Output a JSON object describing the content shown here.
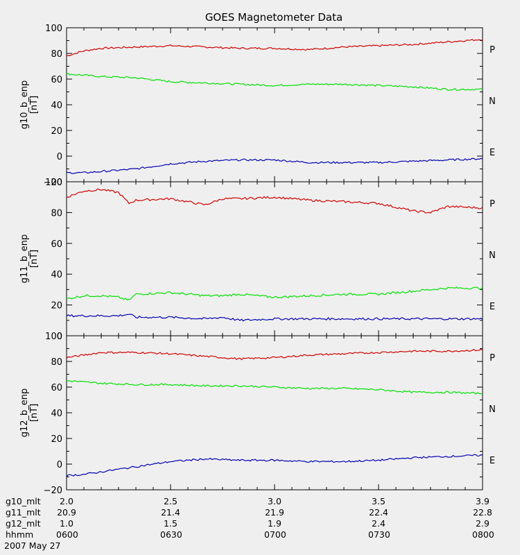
{
  "colors": {
    "P": "#d00000",
    "N": "#00e000",
    "E": "#0000b0",
    "background": "#efefef"
  },
  "chart_data": {
    "title": "GOES Magnetometer Data",
    "type": "line",
    "date": "2007 May 27",
    "x_axis_rows": [
      {
        "label": "g10_mlt",
        "ticks": [
          "2.0",
          "2.5",
          "3.0",
          "3.5",
          "3.9"
        ]
      },
      {
        "label": "g11_mlt",
        "ticks": [
          "20.9",
          "21.4",
          "21.9",
          "22.4",
          "22.8"
        ]
      },
      {
        "label": "g12_mlt",
        "ticks": [
          "1.0",
          "1.5",
          "1.9",
          "2.4",
          "2.9"
        ]
      },
      {
        "label": "hhmm",
        "ticks": [
          "0600",
          "0630",
          "0700",
          "0730",
          "0800"
        ]
      }
    ],
    "panels": [
      {
        "ylabel": "g10_b_enp",
        "yunit": "[nT]",
        "ylim": [
          -20,
          100
        ],
        "yticks": [
          "100",
          "80",
          "60",
          "40",
          "20",
          "0",
          "−20"
        ],
        "ytick_values": [
          100,
          80,
          60,
          40,
          20,
          0,
          -20
        ],
        "legend": [
          "P",
          "N",
          "E"
        ],
        "series": [
          {
            "name": "P",
            "x": [
              "06:00",
              "06:05",
              "06:10",
              "06:20",
              "06:30",
              "06:40",
              "06:50",
              "07:00",
              "07:10",
              "07:20",
              "07:30",
              "07:40",
              "07:50",
              "08:00"
            ],
            "values": [
              78,
              82,
              84,
              85,
              86,
              85,
              84,
              84,
              83,
              85,
              86,
              87,
              89,
              91
            ]
          },
          {
            "name": "N",
            "x": [
              "06:00",
              "06:05",
              "06:10",
              "06:20",
              "06:30",
              "06:40",
              "06:50",
              "07:00",
              "07:10",
              "07:20",
              "07:30",
              "07:40",
              "07:50",
              "08:00"
            ],
            "values": [
              64,
              63,
              62,
              61,
              58,
              57,
              56,
              55,
              56,
              56,
              55,
              54,
              52,
              52
            ]
          },
          {
            "name": "E",
            "x": [
              "06:00",
              "06:05",
              "06:10",
              "06:20",
              "06:30",
              "06:40",
              "06:50",
              "07:00",
              "07:10",
              "07:20",
              "07:30",
              "07:40",
              "07:50",
              "08:00"
            ],
            "values": [
              -13,
              -13,
              -12,
              -10,
              -6,
              -4,
              -3,
              -3,
              -5,
              -5,
              -5,
              -4,
              -3,
              -2
            ]
          }
        ]
      },
      {
        "ylabel": "g11_b_enp",
        "yunit": "[nT]",
        "ylim": [
          0,
          100
        ],
        "yticks": [
          "100",
          "80",
          "60",
          "40",
          "20",
          "0"
        ],
        "ytick_values": [
          100,
          80,
          60,
          40,
          20,
          0
        ],
        "legend": [
          "P",
          "N",
          "E"
        ],
        "series": [
          {
            "name": "P",
            "x": [
              "06:00",
              "06:05",
              "06:10",
              "06:15",
              "06:18",
              "06:20",
              "06:30",
              "06:40",
              "06:45",
              "06:50",
              "07:00",
              "07:10",
              "07:20",
              "07:30",
              "07:40",
              "07:45",
              "07:50",
              "08:00"
            ],
            "values": [
              90,
              94,
              95,
              93,
              86,
              88,
              89,
              85,
              89,
              89,
              90,
              88,
              87,
              86,
              81,
              80,
              84,
              83
            ]
          },
          {
            "name": "N",
            "x": [
              "06:00",
              "06:05",
              "06:10",
              "06:15",
              "06:18",
              "06:20",
              "06:30",
              "06:40",
              "06:45",
              "06:50",
              "07:00",
              "07:10",
              "07:20",
              "07:30",
              "07:40",
              "07:45",
              "07:50",
              "08:00"
            ],
            "values": [
              24,
              26,
              26,
              25,
              23,
              27,
              28,
              26,
              26,
              27,
              25,
              26,
              27,
              27,
              29,
              30,
              31,
              31
            ]
          },
          {
            "name": "E",
            "x": [
              "06:00",
              "06:05",
              "06:10",
              "06:15",
              "06:18",
              "06:20",
              "06:30",
              "06:40",
              "06:45",
              "06:50",
              "07:00",
              "07:10",
              "07:20",
              "07:30",
              "07:40",
              "07:45",
              "07:50",
              "08:00"
            ],
            "values": [
              13,
              13,
              13,
              13,
              14,
              12,
              12,
              11,
              12,
              10,
              11,
              11,
              11,
              11,
              11,
              11,
              11,
              11
            ]
          }
        ]
      },
      {
        "ylabel": "g12_b_enp",
        "yunit": "[nT]",
        "ylim": [
          -20,
          100
        ],
        "yticks": [
          "100",
          "80",
          "60",
          "40",
          "20",
          "0",
          "−20"
        ],
        "ytick_values": [
          100,
          80,
          60,
          40,
          20,
          0,
          -20
        ],
        "legend": [
          "P",
          "N",
          "E"
        ],
        "series": [
          {
            "name": "P",
            "x": [
              "06:00",
              "06:05",
              "06:10",
              "06:20",
              "06:30",
              "06:40",
              "06:50",
              "07:00",
              "07:10",
              "07:20",
              "07:30",
              "07:40",
              "07:50",
              "08:00"
            ],
            "values": [
              83,
              85,
              87,
              87,
              86,
              84,
              82,
              83,
              85,
              86,
              87,
              88,
              88,
              89
            ]
          },
          {
            "name": "N",
            "x": [
              "06:00",
              "06:05",
              "06:10",
              "06:20",
              "06:30",
              "06:40",
              "06:50",
              "07:00",
              "07:10",
              "07:20",
              "07:30",
              "07:40",
              "07:50",
              "08:00"
            ],
            "values": [
              65,
              64,
              63,
              62,
              62,
              61,
              61,
              60,
              59,
              59,
              58,
              56,
              56,
              55
            ]
          },
          {
            "name": "E",
            "x": [
              "06:00",
              "06:05",
              "06:10",
              "06:20",
              "06:30",
              "06:40",
              "06:50",
              "07:00",
              "07:10",
              "07:20",
              "07:30",
              "07:40",
              "07:50",
              "08:00"
            ],
            "values": [
              -9,
              -8,
              -6,
              -2,
              2,
              4,
              3,
              3,
              2,
              2,
              3,
              5,
              6,
              7
            ]
          }
        ]
      }
    ]
  }
}
